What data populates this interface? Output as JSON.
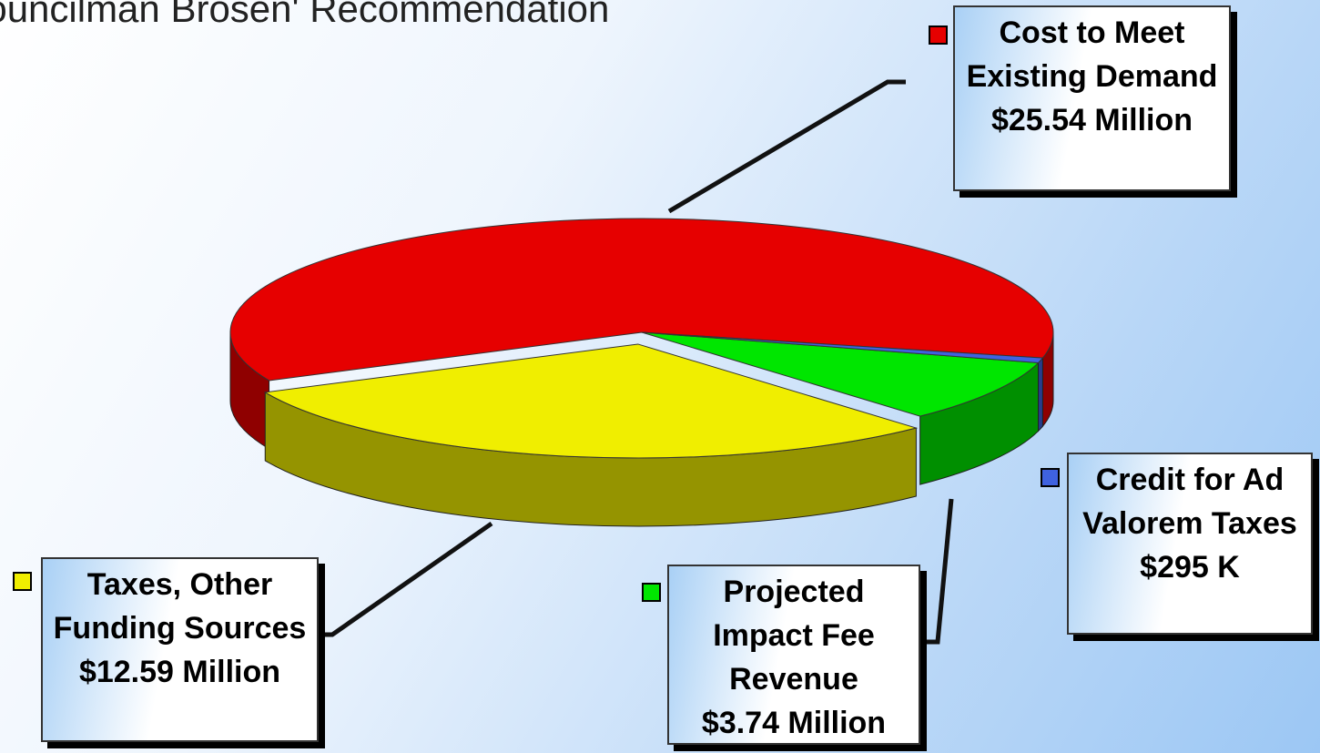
{
  "chart_data": {
    "type": "pie",
    "title": "Councilman Brosen' Recommendation",
    "categories": [
      "Cost to Meet Existing Demand",
      "Taxes, Other Funding Sources",
      "Projected Impact Fee Revenue",
      "Credit for Ad Valorem Taxes"
    ],
    "values": [
      25.54,
      12.59,
      3.74,
      0.295
    ],
    "value_labels": [
      "$25.54 Million",
      "$12.59 Million",
      "$3.74 Million",
      "$295 K"
    ],
    "colors": [
      "#e60000",
      "#f0ee00",
      "#00e600",
      "#3f62e0"
    ]
  }
}
